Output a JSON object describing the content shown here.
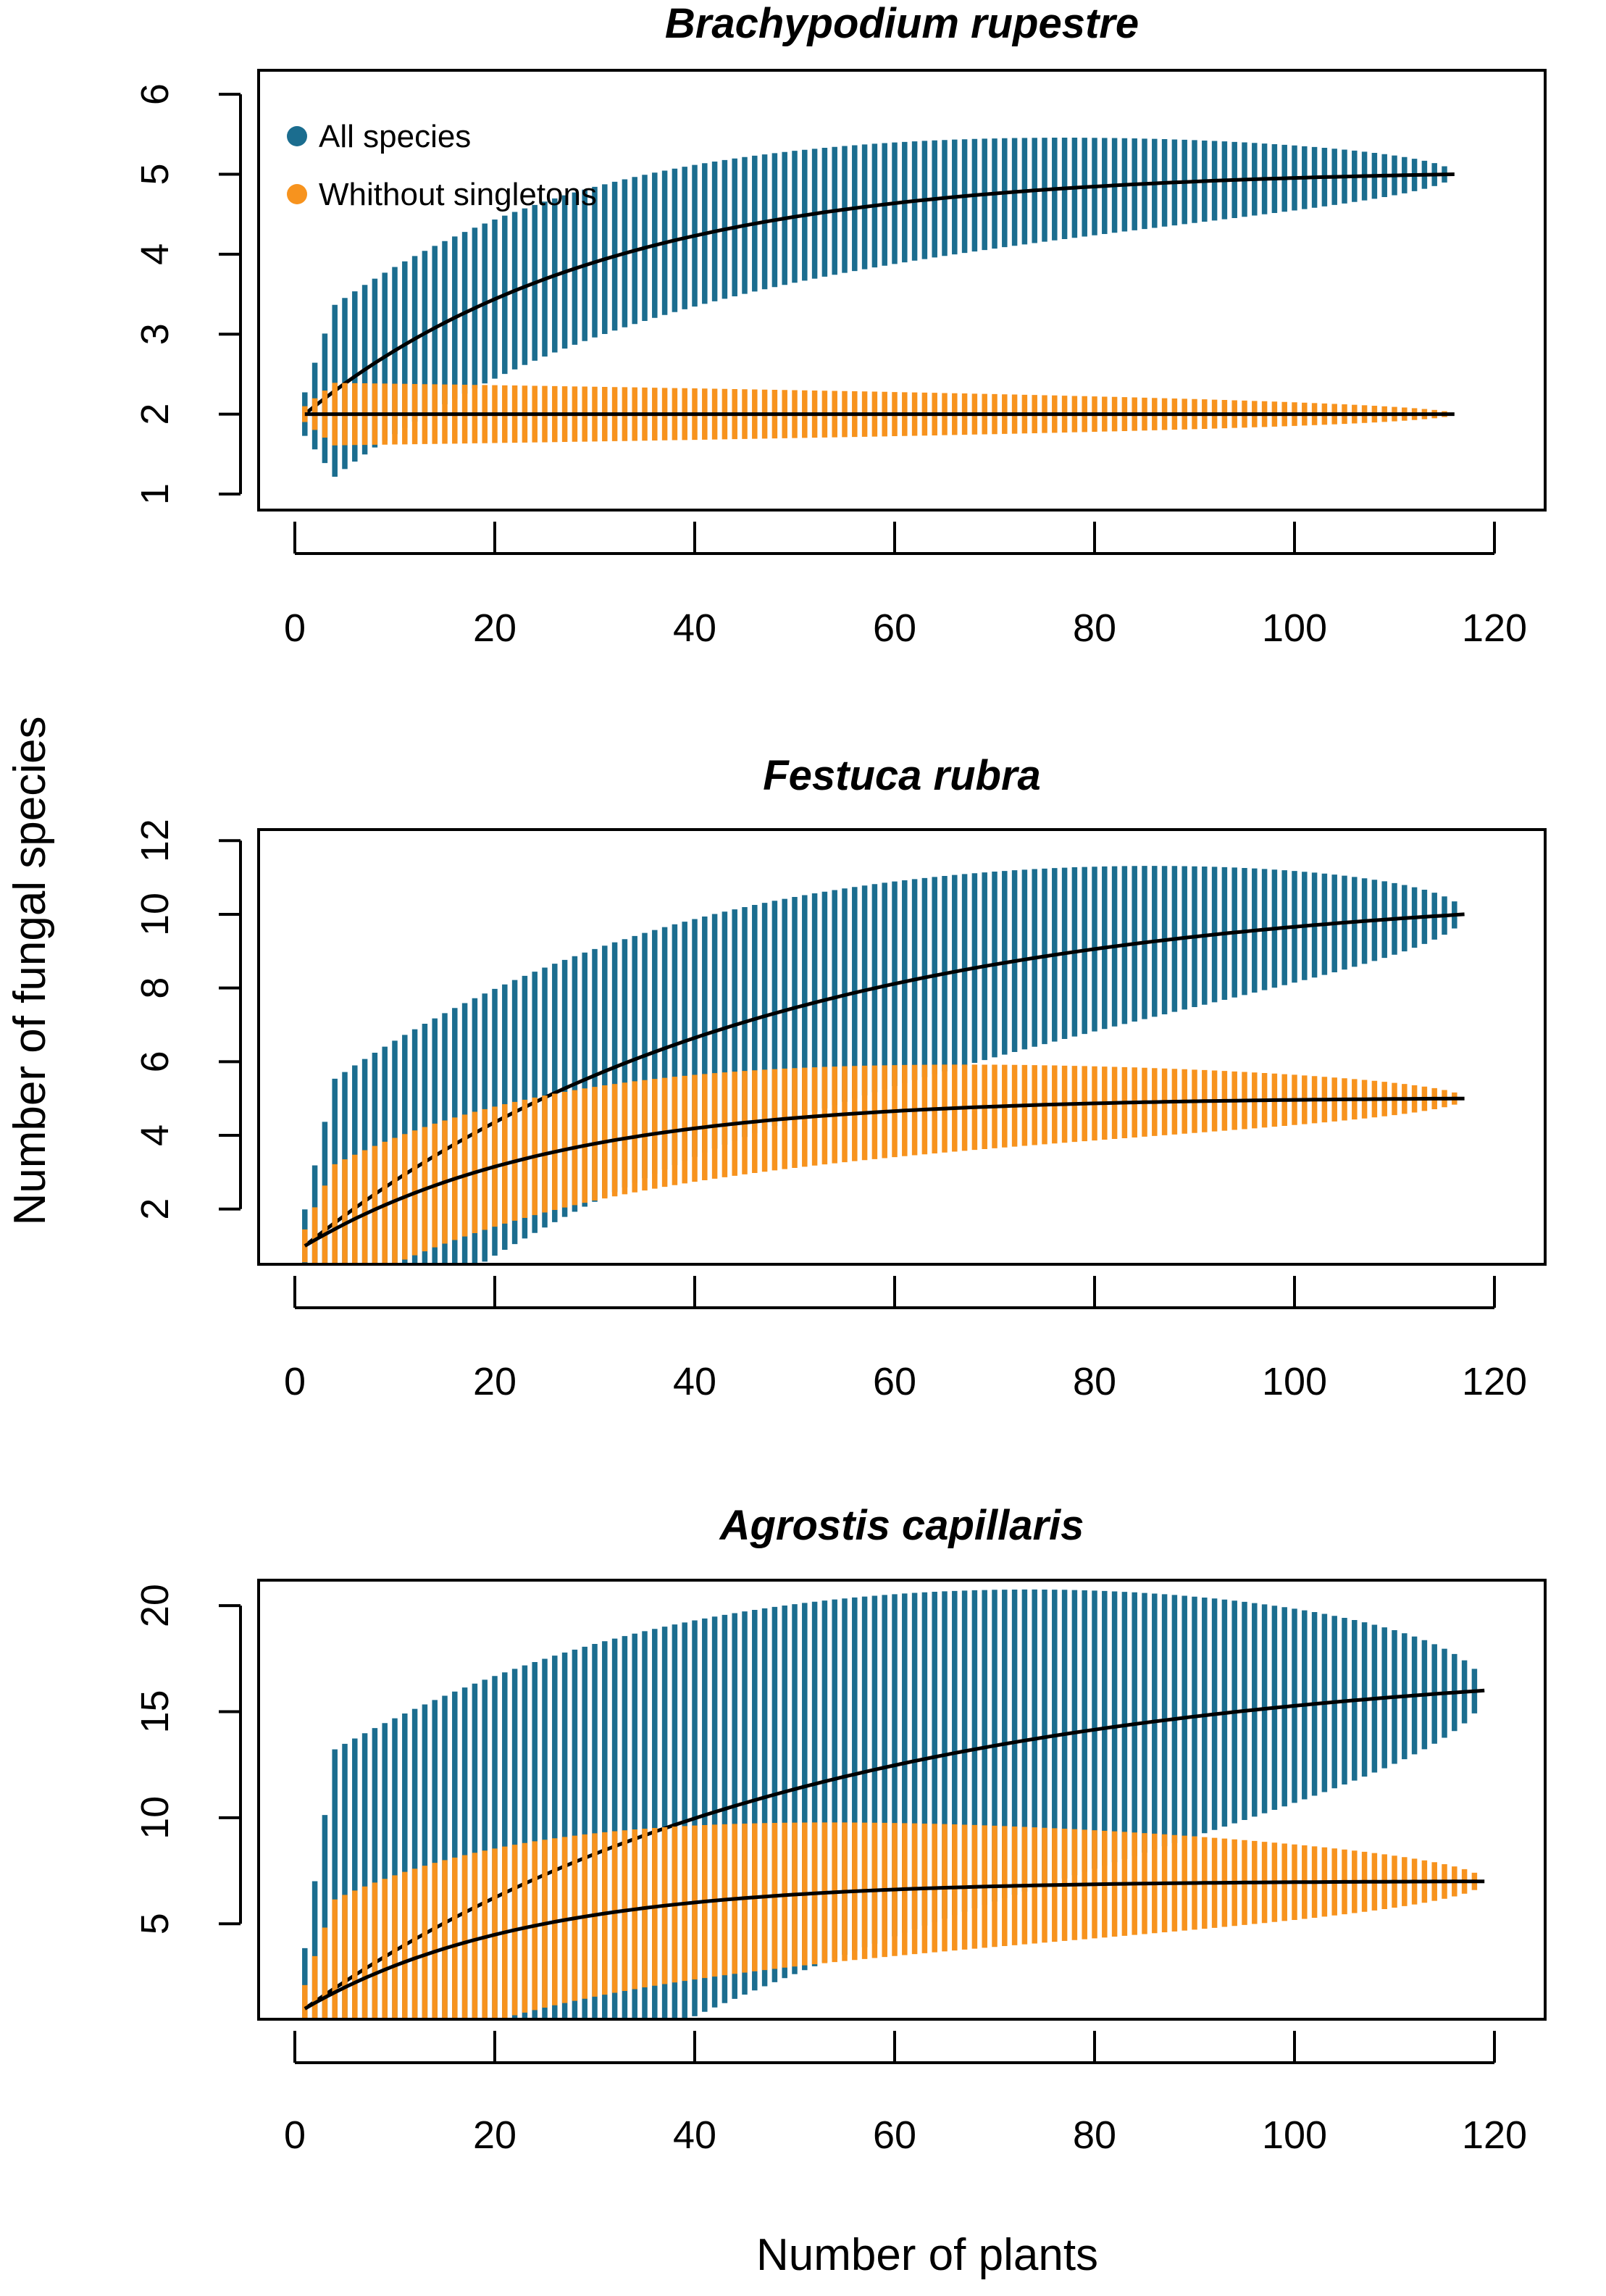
{
  "figure": {
    "xlabel": "Number of plants",
    "ylabel": "Number of fungal species"
  },
  "legend": {
    "items": [
      {
        "label": "All species",
        "color": "#1b6d8f"
      },
      {
        "label": "Whithout singletons",
        "color": "#f7931e"
      }
    ]
  },
  "chart_data": [
    {
      "type": "line",
      "title": "Brachypodium rupestre",
      "xlim": [
        0,
        120
      ],
      "ylim": [
        0.8,
        6.3
      ],
      "xticks": [
        0,
        20,
        40,
        60,
        80,
        100,
        120
      ],
      "yticks": [
        1,
        2,
        3,
        4,
        5,
        6
      ],
      "n": 116,
      "series": [
        {
          "name": "All species",
          "color": "#1b6d8f",
          "final": 5,
          "k": 30,
          "start_sd": 0.55,
          "end_sd": 0.0,
          "first": 2
        },
        {
          "name": "Whithout singletons",
          "color": "#f7931e",
          "final": 2,
          "k": 12,
          "start_sd": 0.5,
          "end_sd": 0.0,
          "first": 2
        }
      ]
    },
    {
      "type": "line",
      "title": "Festuca rubra",
      "xlim": [
        0,
        120
      ],
      "ylim": [
        0.5,
        12.3
      ],
      "xticks": [
        0,
        20,
        40,
        60,
        80,
        100,
        120
      ],
      "yticks": [
        2,
        4,
        6,
        8,
        10,
        12
      ],
      "n": 117,
      "series": [
        {
          "name": "All species",
          "color": "#1b6d8f",
          "final": 10,
          "k": 45,
          "start_sd": 1.0,
          "end_sd": 0.0,
          "first": 1
        },
        {
          "name": "Whithout singletons",
          "color": "#f7931e",
          "final": 5,
          "k": 25,
          "start_sd": 0.9,
          "end_sd": 0.0,
          "first": 1
        }
      ]
    },
    {
      "type": "line",
      "title": "Agrostis capillaris",
      "xlim": [
        0,
        120
      ],
      "ylim": [
        0.5,
        21.2
      ],
      "xticks": [
        0,
        20,
        40,
        60,
        80,
        100,
        120
      ],
      "yticks": [
        5,
        10,
        15,
        20
      ],
      "n": 119,
      "series": [
        {
          "name": "All species",
          "color": "#1b6d8f",
          "final": 16,
          "k": 50,
          "start_sd": 1.8,
          "end_sd": 0.0,
          "first": 1
        },
        {
          "name": "Whithout singletons",
          "color": "#f7931e",
          "final": 7,
          "k": 22,
          "start_sd": 1.6,
          "end_sd": 0.0,
          "first": 1
        }
      ]
    }
  ]
}
